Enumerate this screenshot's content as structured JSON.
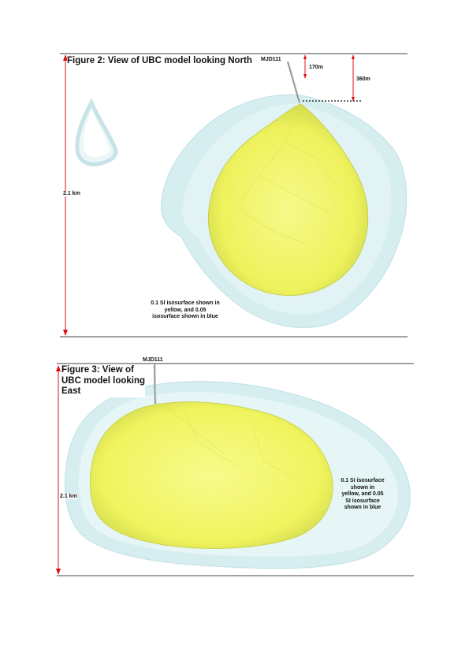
{
  "figure2": {
    "title": "Figure 2: View of UBC model looking North",
    "drillhole": "MJD111",
    "depth_label_1": "170m",
    "depth_label_2": "360m",
    "scale_label": "2.1 km",
    "note_lines": [
      "0.1 SI isosurface shown in",
      "yellow, and 0.05",
      "isosurface shown in blue"
    ],
    "colors": {
      "inner_isosurface": "#f2f56a",
      "outer_isosurface": "#d6eef0",
      "scale_arrow": "#e01010"
    }
  },
  "figure3": {
    "title_lines": [
      "Figure 3: View of",
      "UBC model looking",
      "East"
    ],
    "drillhole": "MJD111",
    "scale_label": "2.1 km",
    "note_lines": [
      "0.1 SI isosurface",
      "shown in",
      "yellow, and 0.05",
      "SI isosurface",
      "shown in blue"
    ],
    "colors": {
      "inner_isosurface": "#f2f56a",
      "outer_isosurface": "#d6eef0",
      "scale_arrow": "#e01010"
    }
  }
}
